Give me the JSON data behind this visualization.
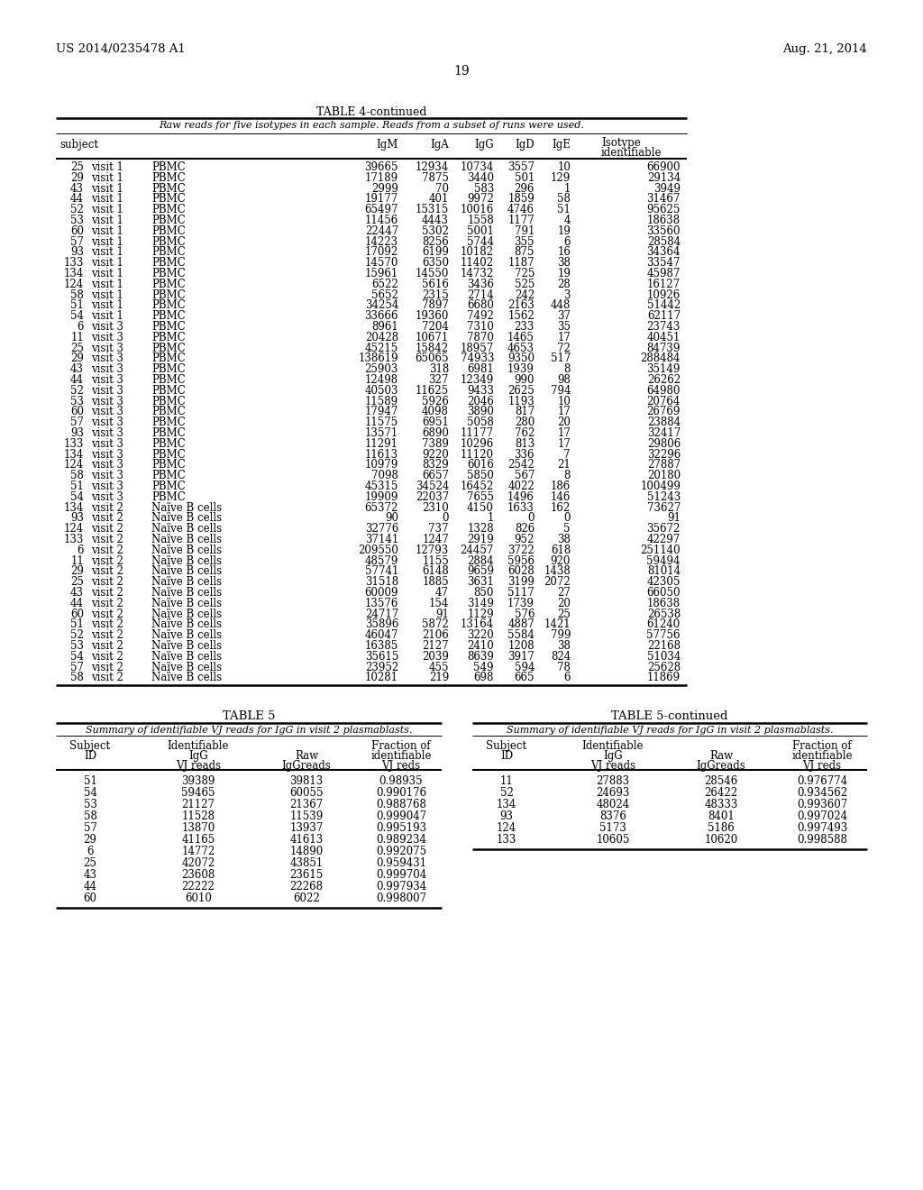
{
  "header_left": "US 2014/0235478 A1",
  "header_right": "Aug. 21, 2014",
  "page_number": "19",
  "table4_title": "TABLE 4-continued",
  "table4_subtitle": "Raw reads for five isotypes in each sample. Reads from a subset of runs were used.",
  "table4_data": [
    [
      "25",
      "visit 1",
      "PBMC",
      "39665",
      "12934",
      "10734",
      "3557",
      "10",
      "66900"
    ],
    [
      "29",
      "visit 1",
      "PBMC",
      "17189",
      "7875",
      "3440",
      "501",
      "129",
      "29134"
    ],
    [
      "43",
      "visit 1",
      "PBMC",
      "2999",
      "70",
      "583",
      "296",
      "1",
      "3949"
    ],
    [
      "44",
      "visit 1",
      "PBMC",
      "19177",
      "401",
      "9972",
      "1859",
      "58",
      "31467"
    ],
    [
      "52",
      "visit 1",
      "PBMC",
      "65497",
      "15315",
      "10016",
      "4746",
      "51",
      "95625"
    ],
    [
      "53",
      "visit 1",
      "PBMC",
      "11456",
      "4443",
      "1558",
      "1177",
      "4",
      "18638"
    ],
    [
      "60",
      "visit 1",
      "PBMC",
      "22447",
      "5302",
      "5001",
      "791",
      "19",
      "33560"
    ],
    [
      "57",
      "visit 1",
      "PBMC",
      "14223",
      "8256",
      "5744",
      "355",
      "6",
      "28584"
    ],
    [
      "93",
      "visit 1",
      "PBMC",
      "17092",
      "6199",
      "10182",
      "875",
      "16",
      "34364"
    ],
    [
      "133",
      "visit 1",
      "PBMC",
      "14570",
      "6350",
      "11402",
      "1187",
      "38",
      "33547"
    ],
    [
      "134",
      "visit 1",
      "PBMC",
      "15961",
      "14550",
      "14732",
      "725",
      "19",
      "45987"
    ],
    [
      "124",
      "visit 1",
      "PBMC",
      "6522",
      "5616",
      "3436",
      "525",
      "28",
      "16127"
    ],
    [
      "58",
      "visit 1",
      "PBMC",
      "5652",
      "2315",
      "2714",
      "242",
      "3",
      "10926"
    ],
    [
      "51",
      "visit 1",
      "PBMC",
      "34254",
      "7897",
      "6680",
      "2163",
      "448",
      "51442"
    ],
    [
      "54",
      "visit 1",
      "PBMC",
      "33666",
      "19360",
      "7492",
      "1562",
      "37",
      "62117"
    ],
    [
      "6",
      "visit 3",
      "PBMC",
      "8961",
      "7204",
      "7310",
      "233",
      "35",
      "23743"
    ],
    [
      "11",
      "visit 3",
      "PBMC",
      "20428",
      "10671",
      "7870",
      "1465",
      "17",
      "40451"
    ],
    [
      "25",
      "visit 3",
      "PBMC",
      "45215",
      "15842",
      "18957",
      "4653",
      "72",
      "84739"
    ],
    [
      "29",
      "visit 3",
      "PBMC",
      "138619",
      "65065",
      "74933",
      "9350",
      "517",
      "288484"
    ],
    [
      "43",
      "visit 3",
      "PBMC",
      "25903",
      "318",
      "6981",
      "1939",
      "8",
      "35149"
    ],
    [
      "44",
      "visit 3",
      "PBMC",
      "12498",
      "327",
      "12349",
      "990",
      "98",
      "26262"
    ],
    [
      "52",
      "visit 3",
      "PBMC",
      "40503",
      "11625",
      "9433",
      "2625",
      "794",
      "64980"
    ],
    [
      "53",
      "visit 3",
      "PBMC",
      "11589",
      "5926",
      "2046",
      "1193",
      "10",
      "20764"
    ],
    [
      "60",
      "visit 3",
      "PBMC",
      "17947",
      "4098",
      "3890",
      "817",
      "17",
      "26769"
    ],
    [
      "57",
      "visit 3",
      "PBMC",
      "11575",
      "6951",
      "5058",
      "280",
      "20",
      "23884"
    ],
    [
      "93",
      "visit 3",
      "PBMC",
      "13571",
      "6890",
      "11177",
      "762",
      "17",
      "32417"
    ],
    [
      "133",
      "visit 3",
      "PBMC",
      "11291",
      "7389",
      "10296",
      "813",
      "17",
      "29806"
    ],
    [
      "134",
      "visit 3",
      "PBMC",
      "11613",
      "9220",
      "11120",
      "336",
      "7",
      "32296"
    ],
    [
      "124",
      "visit 3",
      "PBMC",
      "10979",
      "8329",
      "6016",
      "2542",
      "21",
      "27887"
    ],
    [
      "58",
      "visit 3",
      "PBMC",
      "7098",
      "6657",
      "5850",
      "567",
      "8",
      "20180"
    ],
    [
      "51",
      "visit 3",
      "PBMC",
      "45315",
      "34524",
      "16452",
      "4022",
      "186",
      "100499"
    ],
    [
      "54",
      "visit 3",
      "PBMC",
      "19909",
      "22037",
      "7655",
      "1496",
      "146",
      "51243"
    ],
    [
      "134",
      "visit 2",
      "Naïve B cells",
      "65372",
      "2310",
      "4150",
      "1633",
      "162",
      "73627"
    ],
    [
      "93",
      "visit 2",
      "Naïve B cells",
      "90",
      "0",
      "1",
      "0",
      "0",
      "91"
    ],
    [
      "124",
      "visit 2",
      "Naïve B cells",
      "32776",
      "737",
      "1328",
      "826",
      "5",
      "35672"
    ],
    [
      "133",
      "visit 2",
      "Naïve B cells",
      "37141",
      "1247",
      "2919",
      "952",
      "38",
      "42297"
    ],
    [
      "6",
      "visit 2",
      "Naïve B cells",
      "209550",
      "12793",
      "24457",
      "3722",
      "618",
      "251140"
    ],
    [
      "11",
      "visit 2",
      "Naïve B cells",
      "48579",
      "1155",
      "2884",
      "5956",
      "920",
      "59494"
    ],
    [
      "29",
      "visit 2",
      "Naïve B cells",
      "57741",
      "6148",
      "9659",
      "6028",
      "1438",
      "81014"
    ],
    [
      "25",
      "visit 2",
      "Naïve B cells",
      "31518",
      "1885",
      "3631",
      "3199",
      "2072",
      "42305"
    ],
    [
      "43",
      "visit 2",
      "Naïve B cells",
      "60009",
      "47",
      "850",
      "5117",
      "27",
      "66050"
    ],
    [
      "44",
      "visit 2",
      "Naïve B cells",
      "13576",
      "154",
      "3149",
      "1739",
      "20",
      "18638"
    ],
    [
      "60",
      "visit 2",
      "Naïve B cells",
      "24717",
      "91",
      "1129",
      "576",
      "25",
      "26538"
    ],
    [
      "51",
      "visit 2",
      "Naïve B cells",
      "35896",
      "5872",
      "13164",
      "4887",
      "1421",
      "61240"
    ],
    [
      "52",
      "visit 2",
      "Naïve B cells",
      "46047",
      "2106",
      "3220",
      "5584",
      "799",
      "57756"
    ],
    [
      "53",
      "visit 2",
      "Naïve B cells",
      "16385",
      "2127",
      "2410",
      "1208",
      "38",
      "22168"
    ],
    [
      "54",
      "visit 2",
      "Naïve B cells",
      "35615",
      "2039",
      "8639",
      "3917",
      "824",
      "51034"
    ],
    [
      "57",
      "visit 2",
      "Naïve B cells",
      "23952",
      "455",
      "549",
      "594",
      "78",
      "25628"
    ],
    [
      "58",
      "visit 2",
      "Naïve B cells",
      "10281",
      "219",
      "698",
      "665",
      "6",
      "11869"
    ]
  ],
  "table5_title": "TABLE 5",
  "table5_subtitle": "Summary of identifiable VJ reads for IgG in visit 2 plasmablasts.",
  "table5_data": [
    [
      "51",
      "39389",
      "39813",
      "0.98935"
    ],
    [
      "54",
      "59465",
      "60055",
      "0.990176"
    ],
    [
      "53",
      "21127",
      "21367",
      "0.988768"
    ],
    [
      "58",
      "11528",
      "11539",
      "0.999047"
    ],
    [
      "57",
      "13870",
      "13937",
      "0.995193"
    ],
    [
      "29",
      "41165",
      "41613",
      "0.989234"
    ],
    [
      "6",
      "14772",
      "14890",
      "0.992075"
    ],
    [
      "25",
      "42072",
      "43851",
      "0.959431"
    ],
    [
      "43",
      "23608",
      "23615",
      "0.999704"
    ],
    [
      "44",
      "22222",
      "22268",
      "0.997934"
    ],
    [
      "60",
      "6010",
      "6022",
      "0.998007"
    ]
  ],
  "table5cont_title": "TABLE 5-continued",
  "table5cont_subtitle": "Summary of identifiable VJ reads for IgG in visit 2 plasmablasts.",
  "table5cont_data": [
    [
      "11",
      "27883",
      "28546",
      "0.976774"
    ],
    [
      "52",
      "24693",
      "26422",
      "0.934562"
    ],
    [
      "134",
      "48024",
      "48333",
      "0.993607"
    ],
    [
      "93",
      "8376",
      "8401",
      "0.997024"
    ],
    [
      "124",
      "5173",
      "5186",
      "0.997493"
    ],
    [
      "133",
      "10605",
      "10620",
      "0.998588"
    ]
  ]
}
